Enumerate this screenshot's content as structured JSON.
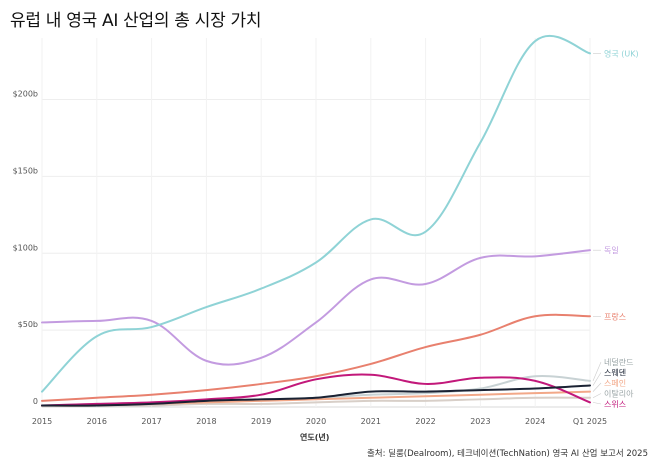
{
  "title": "유럽 내 영국 AI 산업의 총 시장 가치",
  "source": "출처: 딜룸(Dealroom), 테크네이션(TechNation) 영국 AI 산업 보고서 2025",
  "chart_data": {
    "type": "line",
    "title": "유럽 내 영국 AI 산업의 총 시장 가치",
    "xlabel": "연도(년)",
    "ylabel": "",
    "x": [
      "2015",
      "2016",
      "2017",
      "2018",
      "2019",
      "2020",
      "2021",
      "2022",
      "2023",
      "2024",
      "Q1 2025"
    ],
    "ylim": [
      0,
      240
    ],
    "yticks": [
      0,
      50,
      100,
      150,
      200
    ],
    "ytick_labels": [
      "0",
      "$50b",
      "$100b",
      "$150b",
      "$200b"
    ],
    "grid": true,
    "legend": "labels at line ends (right)",
    "series": [
      {
        "name": "영국 (UK)",
        "color": "#8fd3d6",
        "values": [
          10,
          46,
          52,
          65,
          77,
          94,
          122,
          114,
          172,
          238,
          230
        ]
      },
      {
        "name": "독일",
        "color": "#c39be0",
        "values": [
          55,
          56,
          56,
          30,
          32,
          55,
          83,
          80,
          97,
          98,
          102
        ]
      },
      {
        "name": "프랑스",
        "color": "#e8806e",
        "values": [
          4,
          6,
          8,
          11,
          15,
          20,
          28,
          39,
          47,
          59,
          59
        ]
      },
      {
        "name": "네덜란드",
        "color": "#c8d2d4",
        "values": [
          1,
          2,
          3,
          4,
          5,
          6,
          8,
          9,
          12,
          20,
          17
        ]
      },
      {
        "name": "스웨덴",
        "color": "#1a2233",
        "values": [
          1,
          1,
          2,
          4,
          5,
          6,
          10,
          10,
          11,
          12,
          14
        ]
      },
      {
        "name": "스페인",
        "color": "#f2a888",
        "values": [
          1,
          1,
          2,
          3,
          4,
          5,
          6,
          7,
          8,
          9,
          10
        ]
      },
      {
        "name": "이탈리아",
        "color": "#d8cfc8",
        "values": [
          0.5,
          1,
          1,
          2,
          2,
          3,
          4,
          4,
          5,
          6,
          6
        ]
      },
      {
        "name": "스위스",
        "color": "#c2187a",
        "values": [
          1,
          2,
          3,
          5,
          8,
          18,
          21,
          15,
          19,
          17,
          3
        ]
      }
    ]
  }
}
